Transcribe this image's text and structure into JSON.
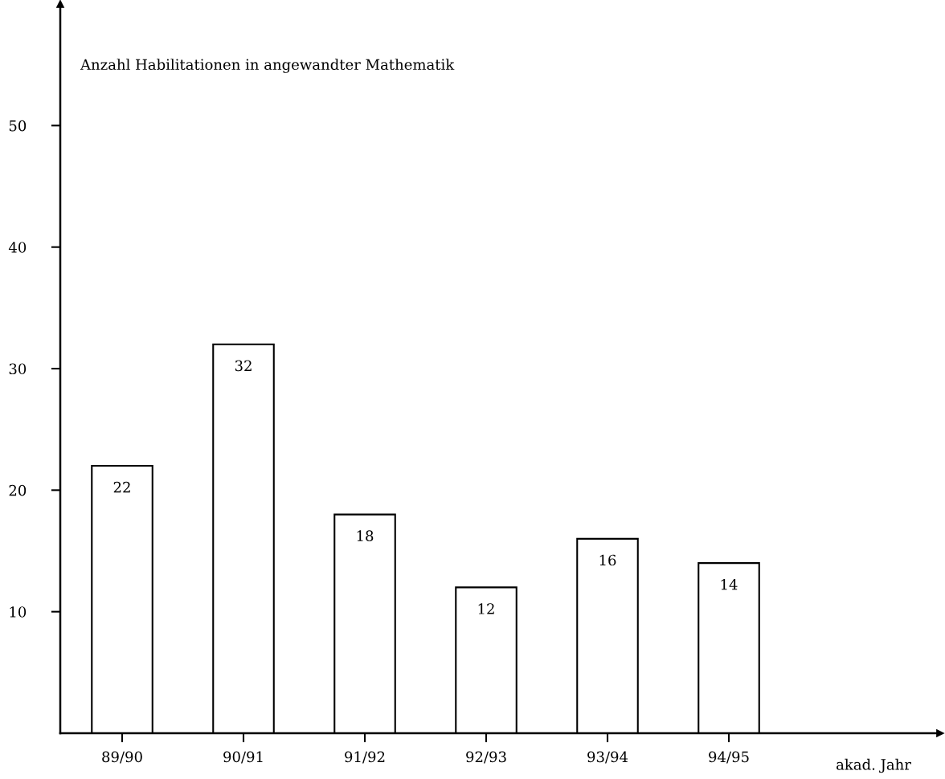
{
  "chart_data": {
    "type": "bar",
    "title": "Anzahl Habilitationen in angewandter Mathematik",
    "xlabel": "akad. Jahr",
    "categories": [
      "89/90",
      "90/91",
      "91/92",
      "92/93",
      "93/94",
      "94/95"
    ],
    "values": [
      22,
      32,
      18,
      12,
      16,
      14
    ],
    "color": "#ffffff",
    "ylim": [
      0,
      60
    ],
    "yticks": [
      10,
      20,
      30,
      40,
      50
    ],
    "data_labels": true,
    "grid": false,
    "legend": false
  }
}
